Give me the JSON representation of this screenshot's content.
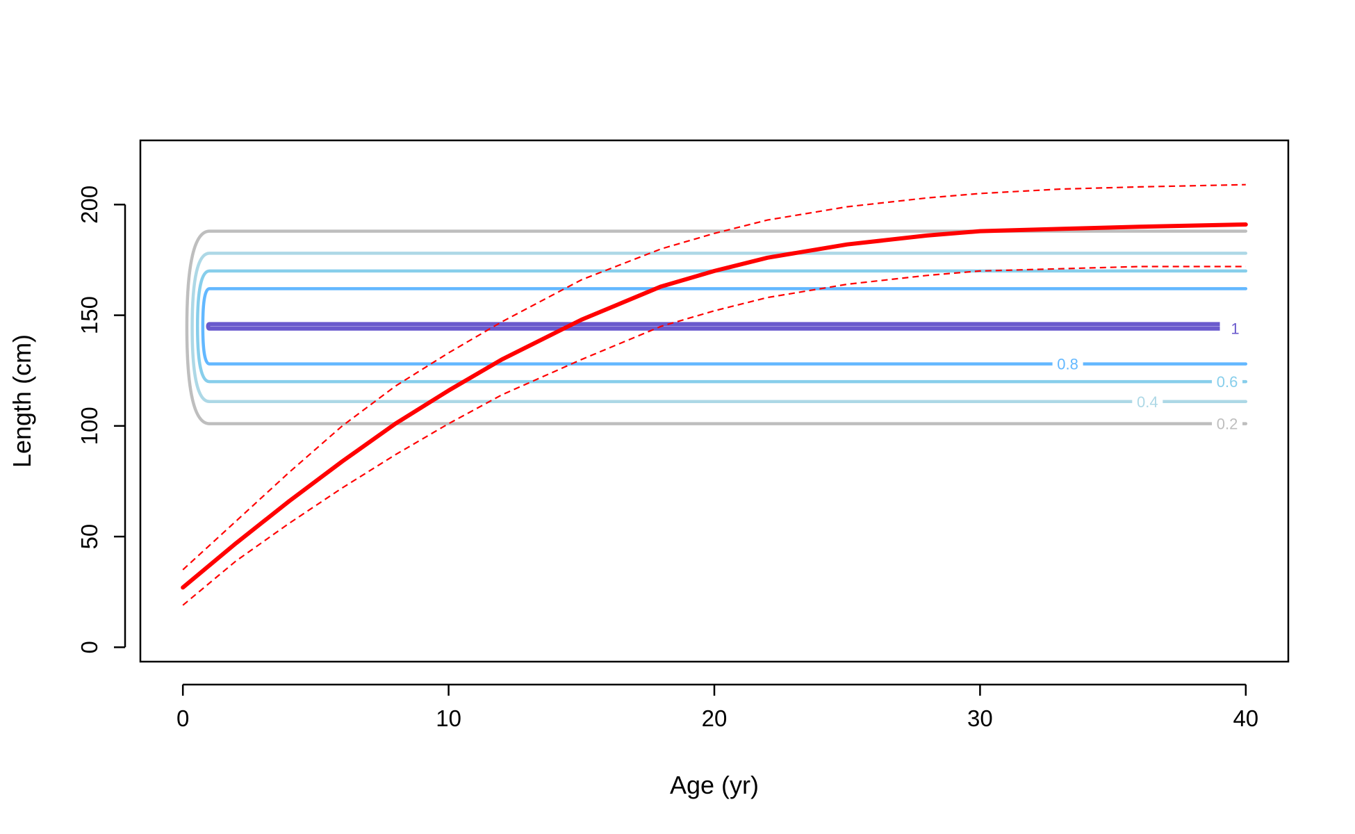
{
  "chart_data": {
    "type": "line",
    "title": "",
    "xlabel": "Age (yr)",
    "ylabel": "Length (cm)",
    "xlim": [
      -1.6,
      41.6
    ],
    "ylim": [
      -6.5,
      229
    ],
    "x_ticks": [
      0,
      10,
      20,
      30,
      40
    ],
    "y_ticks": [
      0,
      50,
      100,
      150,
      200
    ],
    "grid": false,
    "legend": "none",
    "growth_curve": {
      "color": "#ff0000",
      "x": [
        0,
        2,
        4,
        6,
        8,
        10,
        12,
        15,
        18,
        20,
        22,
        25,
        28,
        30,
        33,
        36,
        40
      ],
      "mean": [
        27,
        47,
        66,
        84,
        101,
        116,
        130,
        148,
        163,
        170,
        176,
        182,
        186,
        188,
        189,
        190,
        191
      ],
      "upper": [
        35,
        57,
        79,
        100,
        118,
        133,
        147,
        166,
        180,
        187,
        193,
        199,
        203,
        205,
        207,
        208,
        209
      ],
      "lower": [
        19,
        39,
        56,
        72,
        87,
        101,
        114,
        130,
        145,
        152,
        158,
        164,
        168,
        170,
        171,
        172,
        172
      ]
    },
    "contours": [
      {
        "level": "0.2",
        "color": "#bebebe",
        "upper": 188,
        "lower": 101,
        "x_start": 1,
        "x_end": 40,
        "nose_x": 0.15,
        "label_x": 39.3
      },
      {
        "level": "0.4",
        "color": "#add8e6",
        "upper": 178,
        "lower": 111,
        "x_start": 1,
        "x_end": 40,
        "nose_x": 0.35,
        "label_x": 36.3
      },
      {
        "level": "0.6",
        "color": "#87ceeb",
        "upper": 170,
        "lower": 120,
        "x_start": 1,
        "x_end": 40,
        "nose_x": 0.55,
        "label_x": 39.3
      },
      {
        "level": "0.8",
        "color": "#63b8ff",
        "upper": 162,
        "lower": 128,
        "x_start": 1,
        "x_end": 40,
        "nose_x": 0.75,
        "label_x": 33.3
      },
      {
        "level": "1",
        "color": "#6a5acd",
        "upper": 146,
        "lower": 144,
        "x_start": 1,
        "x_end": 40,
        "nose_x": 0.95,
        "label_x": 39.6
      }
    ]
  }
}
